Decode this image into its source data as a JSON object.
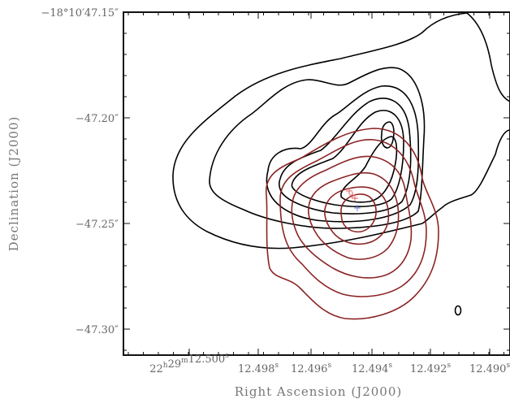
{
  "chart_data": {
    "type": "contour",
    "title": "",
    "xlabel": "Right Ascension (J2000)",
    "ylabel": "Declination (J2000)",
    "x_ticks": [
      {
        "label": "22h29m12.500s",
        "prefix": "22",
        "h": "h",
        "mid": "29",
        "m": "m",
        "sec": "12.500",
        "s": "s"
      },
      {
        "label": "12.498s",
        "sec": "12.498",
        "s": "s"
      },
      {
        "label": "12.496s",
        "sec": "12.496",
        "s": "s"
      },
      {
        "label": "12.494s",
        "sec": "12.494",
        "s": "s"
      },
      {
        "label": "12.492s",
        "sec": "12.492",
        "s": "s"
      },
      {
        "label": "12.490s",
        "sec": "12.490",
        "s": "s"
      }
    ],
    "y_ticks": [
      "−18°10′47.15″",
      "−47.20″",
      "−47.25″",
      "−47.30″"
    ],
    "series": [
      {
        "color": "#000000",
        "levels": 7
      },
      {
        "color": "#8b2323",
        "levels": 6
      }
    ],
    "markers": [
      {
        "symbol": "+",
        "color": "#e06060",
        "count": 3
      },
      {
        "symbol": "+",
        "color": "#6a7fd0",
        "count": 1
      }
    ]
  }
}
